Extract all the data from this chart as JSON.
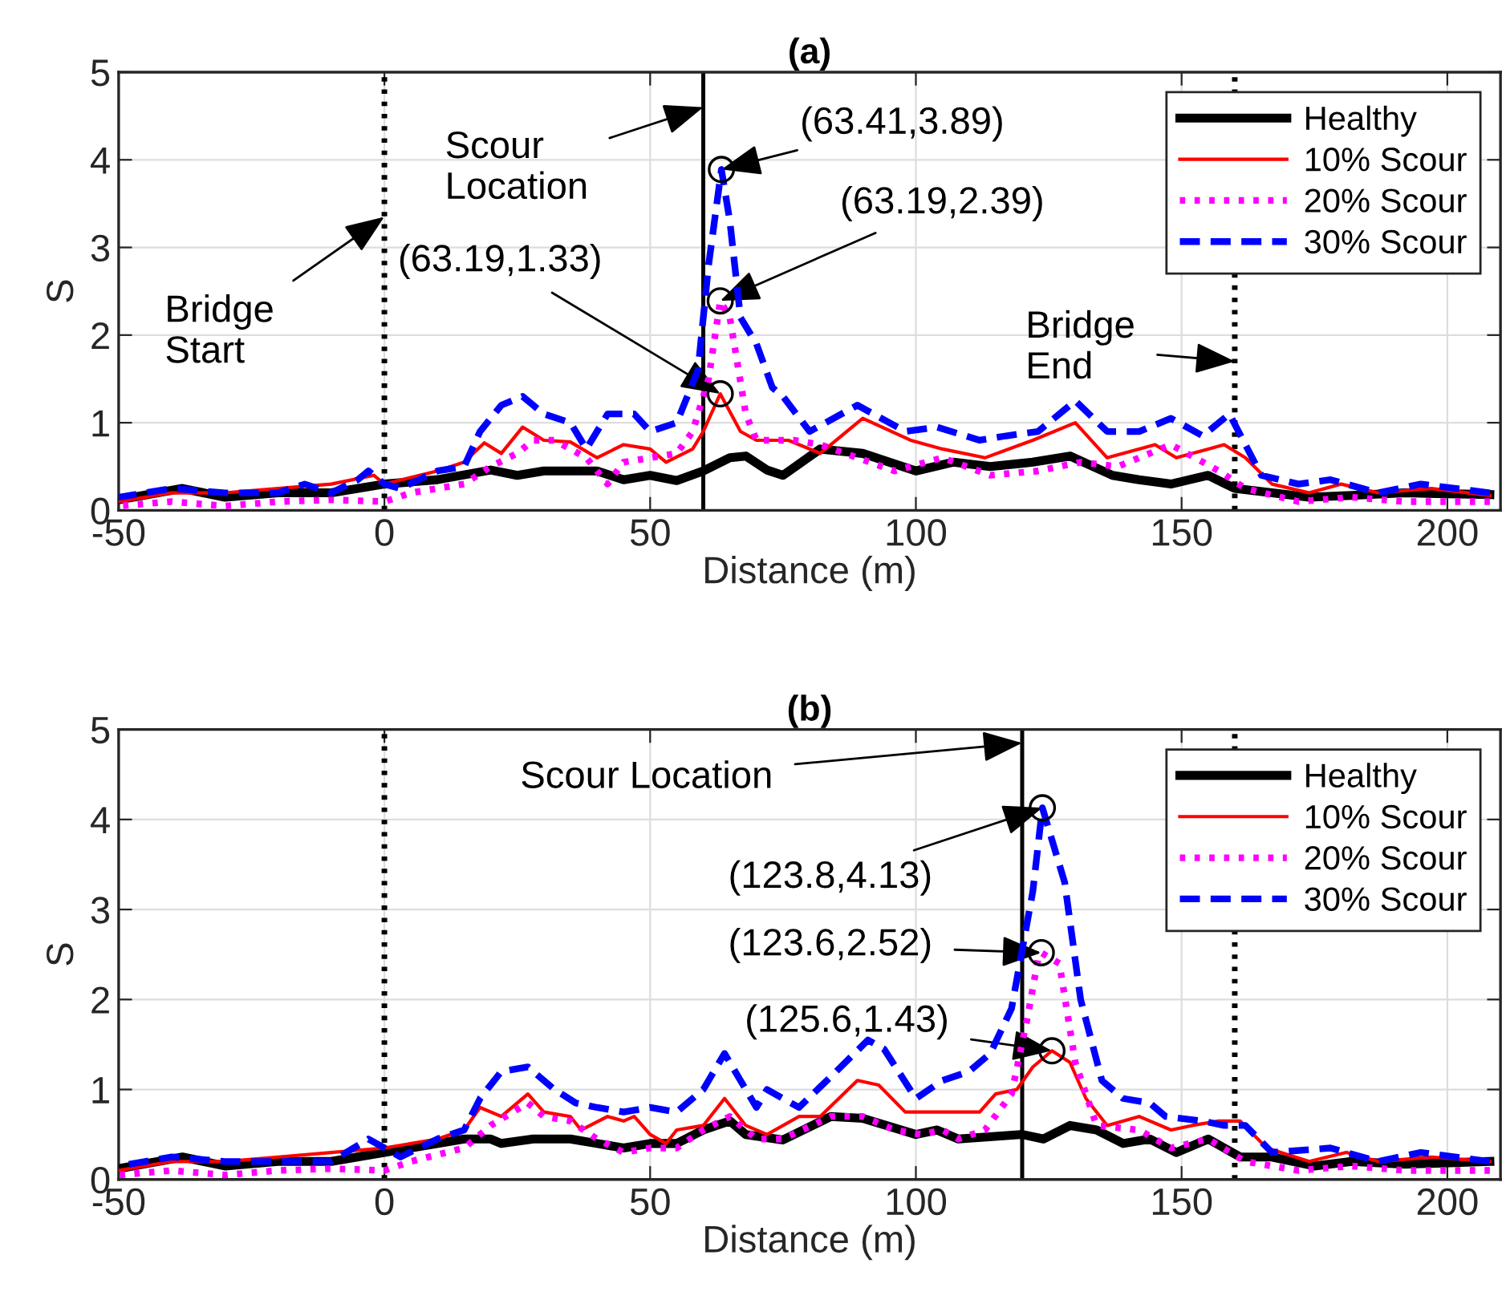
{
  "chart_data": [
    {
      "type": "line",
      "title": "(a)",
      "xlabel": "Distance (m)",
      "ylabel": "S",
      "xlim": [
        -50,
        210
      ],
      "ylim": [
        0,
        5
      ],
      "xticks": [
        -50,
        0,
        50,
        100,
        150,
        200
      ],
      "yticks": [
        0,
        1,
        2,
        3,
        4,
        5
      ],
      "grid": true,
      "legend": "top right",
      "series": [
        {
          "name": "Healthy",
          "color": "#000000",
          "line_style": "solid",
          "x": [
            -50,
            -38,
            -30,
            -20,
            -10,
            0,
            10,
            20,
            25,
            30,
            40,
            45,
            50,
            55,
            60,
            65,
            68,
            72,
            75,
            82,
            90,
            100,
            107,
            114,
            122,
            129,
            137,
            142,
            148,
            155,
            160,
            167,
            174,
            182,
            192,
            208
          ],
          "values": [
            0.12,
            0.25,
            0.15,
            0.2,
            0.2,
            0.3,
            0.35,
            0.46,
            0.4,
            0.45,
            0.45,
            0.35,
            0.4,
            0.34,
            0.45,
            0.6,
            0.62,
            0.46,
            0.4,
            0.7,
            0.65,
            0.45,
            0.55,
            0.5,
            0.55,
            0.62,
            0.4,
            0.35,
            0.3,
            0.4,
            0.25,
            0.2,
            0.15,
            0.17,
            0.2,
            0.18
          ]
        },
        {
          "name": "10% Scour",
          "color": "#ff0000",
          "line_style": "solid",
          "x": [
            -50,
            -40,
            -30,
            -20,
            -10,
            -2,
            0,
            10,
            15,
            18.8,
            22,
            26,
            30,
            35,
            40,
            45,
            50,
            53,
            58,
            60,
            63.19,
            67,
            70,
            76,
            82,
            90,
            99,
            105,
            113,
            122,
            130,
            136,
            145,
            149,
            155,
            158,
            162,
            167,
            174,
            180,
            187,
            197,
            208
          ],
          "values": [
            0.1,
            0.2,
            0.2,
            0.25,
            0.3,
            0.4,
            0.3,
            0.45,
            0.55,
            0.77,
            0.65,
            0.95,
            0.8,
            0.78,
            0.6,
            0.75,
            0.7,
            0.55,
            0.7,
            0.9,
            1.33,
            0.9,
            0.8,
            0.8,
            0.65,
            1.05,
            0.8,
            0.7,
            0.6,
            0.8,
            1.0,
            0.6,
            0.75,
            0.6,
            0.7,
            0.75,
            0.6,
            0.3,
            0.2,
            0.3,
            0.2,
            0.25,
            0.17
          ]
        },
        {
          "name": "20% Scour",
          "color": "#ff00ff",
          "line_style": "dotted",
          "x": [
            -50,
            -40,
            -30,
            -20,
            -10,
            0,
            5,
            15,
            20,
            25,
            28,
            32,
            38,
            42,
            45,
            50,
            55,
            58,
            61,
            63.19,
            65,
            68,
            70,
            77,
            82,
            89,
            96,
            105,
            114,
            123,
            131,
            138,
            148,
            157,
            162,
            172,
            182,
            192,
            208
          ],
          "values": [
            0.05,
            0.1,
            0.05,
            0.1,
            0.12,
            0.1,
            0.2,
            0.3,
            0.5,
            0.65,
            0.8,
            0.8,
            0.6,
            0.3,
            0.55,
            0.6,
            0.65,
            0.9,
            1.5,
            2.39,
            2.2,
            1.1,
            0.8,
            0.8,
            0.75,
            0.6,
            0.45,
            0.6,
            0.4,
            0.45,
            0.55,
            0.5,
            0.75,
            0.45,
            0.25,
            0.1,
            0.15,
            0.1,
            0.1
          ]
        },
        {
          "name": "30% Scour",
          "color": "#0000ff",
          "line_style": "dashed",
          "x": [
            -50,
            -40,
            -30,
            -20,
            -15,
            -10,
            -5,
            -3,
            0,
            3,
            10,
            15,
            18,
            22,
            26,
            30,
            35,
            38,
            42,
            47,
            50,
            55,
            59,
            61,
            63.41,
            65,
            67,
            70,
            73,
            75,
            80,
            89,
            98,
            104,
            112,
            117,
            123,
            130,
            136,
            142,
            148,
            154,
            159,
            165,
            172,
            178,
            187,
            195,
            208
          ],
          "values": [
            0.15,
            0.25,
            0.2,
            0.2,
            0.3,
            0.2,
            0.35,
            0.45,
            0.3,
            0.25,
            0.45,
            0.5,
            0.9,
            1.2,
            1.3,
            1.1,
            1.0,
            0.7,
            1.1,
            1.1,
            0.9,
            1.0,
            1.6,
            2.8,
            3.89,
            3.3,
            2.2,
            1.9,
            1.4,
            1.3,
            0.9,
            1.2,
            0.9,
            0.95,
            0.8,
            0.85,
            0.9,
            1.25,
            0.9,
            0.9,
            1.05,
            0.85,
            1.1,
            0.4,
            0.3,
            0.35,
            0.2,
            0.3,
            0.2
          ]
        }
      ],
      "ref_lines": [
        {
          "axis": "x",
          "value": 0,
          "label": "Bridge\nStart",
          "line_style": "dotted",
          "color": "#000000"
        },
        {
          "axis": "x",
          "value": 60,
          "label": "Scour\nLocation",
          "line_style": "solid",
          "color": "#000000"
        },
        {
          "axis": "x",
          "value": 160,
          "label": "Bridge\nEnd",
          "line_style": "dotted",
          "color": "#000000"
        }
      ],
      "annotations": [
        {
          "text": "(63.41,3.89)",
          "x": 63.41,
          "y": 3.89
        },
        {
          "text": "(63.19,2.39)",
          "x": 63.19,
          "y": 2.39
        },
        {
          "text": "(63.19,1.33)",
          "x": 63.19,
          "y": 1.33
        }
      ]
    },
    {
      "type": "line",
      "title": "(b)",
      "xlabel": "Distance (m)",
      "ylabel": "S",
      "xlim": [
        -50,
        210
      ],
      "ylim": [
        0,
        5
      ],
      "xticks": [
        -50,
        0,
        50,
        100,
        150,
        200
      ],
      "yticks": [
        0,
        1,
        2,
        3,
        4,
        5
      ],
      "grid": true,
      "legend": "top right",
      "series": [
        {
          "name": "Healthy",
          "color": "#000000",
          "line_style": "solid",
          "x": [
            -50,
            -38,
            -30,
            -20,
            -10,
            0,
            15,
            20,
            22,
            28,
            35,
            40,
            45,
            50,
            55,
            60,
            65,
            68,
            75,
            84,
            90,
            100,
            104,
            108,
            120,
            124,
            129,
            134,
            139,
            144,
            149,
            155,
            161,
            167,
            175,
            182,
            192,
            208
          ],
          "values": [
            0.12,
            0.25,
            0.15,
            0.2,
            0.2,
            0.3,
            0.45,
            0.45,
            0.4,
            0.45,
            0.45,
            0.4,
            0.35,
            0.4,
            0.4,
            0.55,
            0.65,
            0.5,
            0.44,
            0.7,
            0.68,
            0.5,
            0.55,
            0.45,
            0.5,
            0.45,
            0.6,
            0.55,
            0.4,
            0.45,
            0.3,
            0.45,
            0.25,
            0.25,
            0.15,
            0.2,
            0.17,
            0.2
          ]
        },
        {
          "name": "10% Scour",
          "color": "#ff0000",
          "line_style": "solid",
          "x": [
            -50,
            -40,
            -30,
            -20,
            -10,
            0,
            10,
            15,
            18,
            22,
            27,
            30,
            35,
            37,
            42,
            45,
            47,
            50,
            53,
            55,
            60,
            64,
            68,
            72,
            78,
            82,
            89,
            93,
            98,
            103,
            112,
            115,
            119,
            122,
            125.6,
            129,
            132,
            136,
            142,
            148,
            152,
            157,
            161,
            166,
            174,
            181,
            187,
            197,
            208
          ],
          "values": [
            0.1,
            0.2,
            0.2,
            0.25,
            0.3,
            0.35,
            0.45,
            0.55,
            0.8,
            0.7,
            0.95,
            0.75,
            0.7,
            0.55,
            0.7,
            0.65,
            0.7,
            0.5,
            0.4,
            0.55,
            0.6,
            0.9,
            0.6,
            0.5,
            0.7,
            0.7,
            1.1,
            1.05,
            0.75,
            0.75,
            0.75,
            0.95,
            1.0,
            1.25,
            1.43,
            1.3,
            0.9,
            0.6,
            0.7,
            0.55,
            0.6,
            0.65,
            0.65,
            0.35,
            0.2,
            0.3,
            0.2,
            0.25,
            0.2
          ]
        },
        {
          "name": "20% Scour",
          "color": "#ff00ff",
          "line_style": "dotted",
          "x": [
            -50,
            -40,
            -30,
            -20,
            -10,
            0,
            5,
            15,
            20,
            27,
            30,
            35,
            40,
            45,
            50,
            55,
            60,
            65,
            70,
            75,
            84,
            90,
            96,
            101,
            105,
            108,
            113,
            118,
            121,
            123,
            123.6,
            127,
            130,
            134,
            142,
            148,
            155,
            162,
            172,
            182,
            192,
            208
          ],
          "values": [
            0.05,
            0.1,
            0.05,
            0.1,
            0.12,
            0.1,
            0.2,
            0.35,
            0.6,
            0.85,
            0.7,
            0.65,
            0.45,
            0.3,
            0.35,
            0.35,
            0.55,
            0.7,
            0.45,
            0.45,
            0.7,
            0.7,
            0.55,
            0.5,
            0.55,
            0.45,
            0.55,
            0.95,
            1.8,
            2.45,
            2.52,
            2.4,
            1.3,
            0.6,
            0.55,
            0.35,
            0.45,
            0.2,
            0.1,
            0.15,
            0.1,
            0.1
          ]
        },
        {
          "name": "30% Scour",
          "color": "#0000ff",
          "line_style": "dashed",
          "x": [
            -50,
            -40,
            -30,
            -20,
            -10,
            -3,
            0,
            3,
            10,
            15,
            18,
            22,
            27,
            32,
            36,
            40,
            45,
            50,
            55,
            60,
            64,
            67,
            70,
            72,
            78,
            85,
            91,
            94,
            100,
            105,
            110,
            114,
            118,
            122,
            123.8,
            128,
            131,
            135,
            139,
            144,
            147,
            154,
            158,
            162,
            167,
            178,
            187,
            195,
            208
          ],
          "values": [
            0.15,
            0.25,
            0.2,
            0.2,
            0.2,
            0.45,
            0.35,
            0.25,
            0.45,
            0.55,
            0.9,
            1.2,
            1.25,
            1.0,
            0.85,
            0.8,
            0.75,
            0.8,
            0.75,
            1.0,
            1.4,
            1.1,
            0.8,
            1.0,
            0.8,
            1.2,
            1.55,
            1.45,
            0.9,
            1.1,
            1.2,
            1.4,
            1.9,
            3.2,
            4.13,
            3.3,
            2.0,
            1.1,
            0.9,
            0.85,
            0.7,
            0.65,
            0.6,
            0.6,
            0.3,
            0.35,
            0.2,
            0.3,
            0.2
          ]
        }
      ],
      "ref_lines": [
        {
          "axis": "x",
          "value": 0,
          "label": null,
          "line_style": "dotted",
          "color": "#000000"
        },
        {
          "axis": "x",
          "value": 120,
          "label": "Scour Location",
          "line_style": "solid",
          "color": "#000000"
        },
        {
          "axis": "x",
          "value": 160,
          "label": null,
          "line_style": "dotted",
          "color": "#000000"
        }
      ],
      "annotations": [
        {
          "text": "(123.8,4.13)",
          "x": 123.8,
          "y": 4.13
        },
        {
          "text": "(123.6,2.52)",
          "x": 123.6,
          "y": 2.52
        },
        {
          "text": "(125.6,1.43)",
          "x": 125.6,
          "y": 1.43
        }
      ]
    }
  ]
}
